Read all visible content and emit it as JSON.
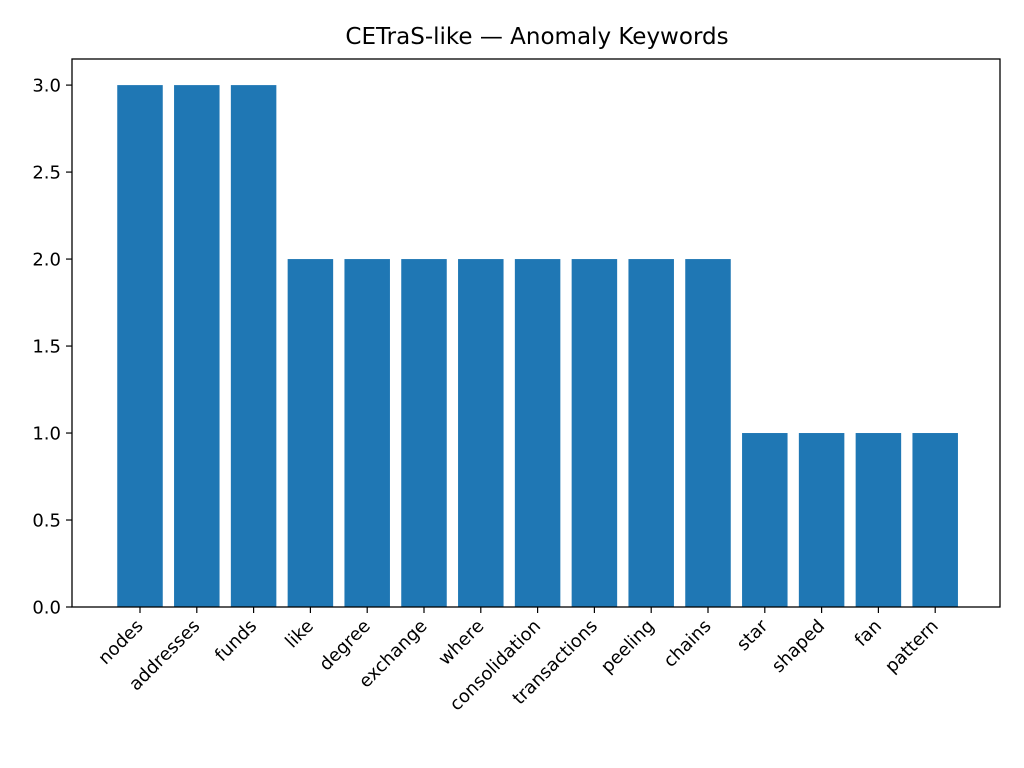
{
  "chart_data": {
    "type": "bar",
    "title": "CETraS-like — Anomaly Keywords",
    "xlabel": "",
    "ylabel": "",
    "categories": [
      "nodes",
      "addresses",
      "funds",
      "like",
      "degree",
      "exchange",
      "where",
      "consolidation",
      "transactions",
      "peeling",
      "chains",
      "star",
      "shaped",
      "fan",
      "pattern"
    ],
    "values": [
      3,
      3,
      3,
      2,
      2,
      2,
      2,
      2,
      2,
      2,
      2,
      1,
      1,
      1,
      1
    ],
    "ylim": [
      0,
      3.15
    ],
    "yticks": [
      "0.0",
      "0.5",
      "1.0",
      "1.5",
      "2.0",
      "2.5",
      "3.0"
    ],
    "bar_color": "#1f77b4",
    "grid": false,
    "legend": "none"
  }
}
